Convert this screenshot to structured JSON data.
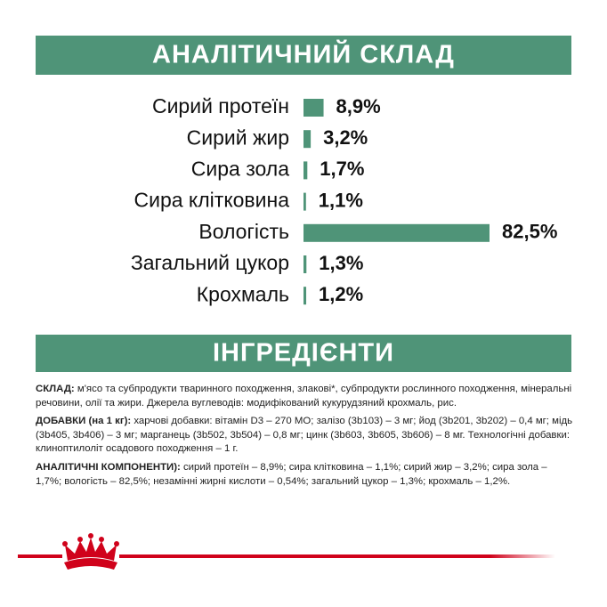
{
  "chart_data": {
    "type": "bar",
    "orientation": "horizontal",
    "title": "АНАЛІТИЧНИЙ СКЛАД",
    "categories": [
      "Сирий протеїн",
      "Сирий жир",
      "Сира зола",
      "Сира клітковина",
      "Вологість",
      "Загальний цукор",
      "Крохмаль"
    ],
    "values": [
      8.9,
      3.2,
      1.7,
      1.1,
      82.5,
      1.3,
      1.2
    ],
    "value_labels": [
      "8,9%",
      "3,2%",
      "1,7%",
      "1,1%",
      "82,5%",
      "1,3%",
      "1,2%"
    ],
    "color": "#4f9478"
  },
  "ingredients": {
    "title": "ІНГРЕДІЄНТИ",
    "paragraphs": [
      {
        "label": "СКЛАД:",
        "text": "м'ясо та субпродукти тваринного походження, злакові*, субпродукти рослинного походження, мінеральні речовини, олії та жири. Джерела вуглеводів: модифікований кукурудзяний крохмаль, рис."
      },
      {
        "label": "ДОБАВКИ (на 1 кг):",
        "text": "харчові добавки: вітамін D3 – 270 МО; залізо (3b103) – 3 мг; йод (3b201, 3b202) – 0,4 мг; мідь (3b405, 3b406) – 3 мг; марганець (3b502, 3b504) – 0,8 мг; цинк (3b603, 3b605, 3b606) – 8 мг. Технологічні добавки: клиноптилоліт осадового походження – 1 г."
      },
      {
        "label": "АНАЛІТИЧНІ КОМПОНЕНТИ):",
        "text": "сирий протеїн – 8,9%; сира клітковина – 1,1%; сирий жир – 3,2%; сира зола – 1,7%; вологість – 82,5%; незамінні жирні кислоти – 0,54%; загальний цукор – 1,3%; крохмаль – 1,2%."
      }
    ]
  }
}
